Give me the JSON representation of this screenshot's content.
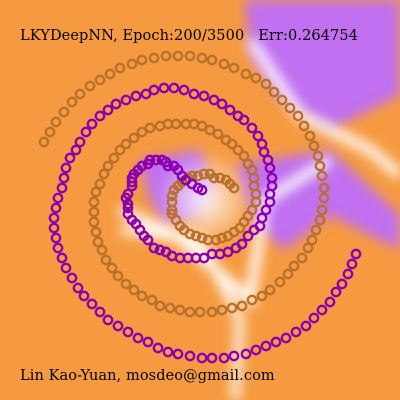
{
  "header": {
    "network": "LKYDeepNN",
    "epoch_text": "Epoch:200/3500",
    "error_text": "Err:0.264754"
  },
  "footer": {
    "credit": "Lin Kao-Yuan, mosdeo@gmail.com"
  },
  "colors": {
    "class_a": "#8a00b0",
    "class_b": "#b8702a",
    "region_a": "#c070f0",
    "region_b": "#f59a40",
    "boundary": "#ffffff"
  },
  "chart_data": {
    "type": "scatter",
    "title": "LKYDeepNN, Epoch:200/3500  Err:0.264754",
    "xlim": [
      -1,
      1
    ],
    "ylim": [
      -1,
      1
    ],
    "grid": false,
    "legend": "none",
    "series": [
      {
        "class": "a",
        "points": [
          [
            0.01,
            0.05
          ],
          [
            -0.01,
            0.06
          ],
          [
            -0.04,
            0.08
          ],
          [
            -0.07,
            0.1
          ],
          [
            -0.09,
            0.12
          ],
          [
            -0.11,
            0.15
          ],
          [
            -0.13,
            0.17
          ],
          [
            -0.16,
            0.17
          ],
          [
            -0.17,
            0.19
          ],
          [
            -0.19,
            0.2
          ],
          [
            -0.22,
            0.2
          ],
          [
            -0.25,
            0.2
          ],
          [
            -0.26,
            0.18
          ],
          [
            -0.29,
            0.17
          ],
          [
            -0.31,
            0.15
          ],
          [
            -0.33,
            0.13
          ],
          [
            -0.34,
            0.11
          ],
          [
            -0.34,
            0.09
          ],
          [
            -0.34,
            0.07
          ],
          [
            -0.36,
            0.03
          ],
          [
            -0.37,
            0.01
          ],
          [
            -0.36,
            -0.02
          ],
          [
            -0.36,
            -0.04
          ],
          [
            -0.36,
            -0.07
          ],
          [
            -0.34,
            -0.1
          ],
          [
            -0.32,
            -0.12
          ],
          [
            -0.3,
            -0.15
          ],
          [
            -0.28,
            -0.18
          ],
          [
            -0.26,
            -0.2
          ],
          [
            -0.23,
            -0.24
          ],
          [
            -0.2,
            -0.25
          ],
          [
            -0.17,
            -0.26
          ],
          [
            -0.14,
            -0.28
          ],
          [
            -0.1,
            -0.29
          ],
          [
            -0.06,
            -0.29
          ],
          [
            -0.02,
            -0.29
          ],
          [
            0.02,
            -0.29
          ],
          [
            0.06,
            -0.27
          ],
          [
            0.1,
            -0.27
          ],
          [
            0.14,
            -0.26
          ],
          [
            0.18,
            -0.24
          ],
          [
            0.21,
            -0.22
          ],
          [
            0.24,
            -0.18
          ],
          [
            0.27,
            -0.15
          ],
          [
            0.3,
            -0.13
          ],
          [
            0.31,
            -0.09
          ],
          [
            0.33,
            -0.05
          ],
          [
            0.35,
            -0.01
          ],
          [
            0.35,
            0.03
          ],
          [
            0.36,
            0.07
          ],
          [
            0.36,
            0.11
          ],
          [
            0.35,
            0.16
          ],
          [
            0.34,
            0.2
          ],
          [
            0.32,
            0.24
          ],
          [
            0.31,
            0.28
          ],
          [
            0.29,
            0.32
          ],
          [
            0.26,
            0.36
          ],
          [
            0.22,
            0.4
          ],
          [
            0.19,
            0.42
          ],
          [
            0.15,
            0.45
          ],
          [
            0.11,
            0.48
          ],
          [
            0.07,
            0.5
          ],
          [
            0.02,
            0.52
          ],
          [
            -0.03,
            0.53
          ],
          [
            -0.08,
            0.55
          ],
          [
            -0.13,
            0.56
          ],
          [
            -0.18,
            0.56
          ],
          [
            -0.23,
            0.55
          ],
          [
            -0.27,
            0.53
          ],
          [
            -0.32,
            0.52
          ],
          [
            -0.37,
            0.5
          ],
          [
            -0.42,
            0.48
          ],
          [
            -0.46,
            0.45
          ],
          [
            -0.5,
            0.42
          ],
          [
            -0.54,
            0.38
          ],
          [
            -0.57,
            0.34
          ],
          [
            -0.6,
            0.29
          ],
          [
            -0.62,
            0.25
          ],
          [
            -0.65,
            0.21
          ],
          [
            -0.67,
            0.16
          ],
          [
            -0.68,
            0.11
          ],
          [
            -0.69,
            0.06
          ],
          [
            -0.71,
            0.01
          ],
          [
            -0.72,
            -0.04
          ],
          [
            -0.73,
            -0.09
          ],
          [
            -0.73,
            -0.14
          ],
          [
            -0.72,
            -0.19
          ],
          [
            -0.71,
            -0.24
          ],
          [
            -0.69,
            -0.29
          ],
          [
            -0.67,
            -0.34
          ],
          [
            -0.64,
            -0.39
          ],
          [
            -0.61,
            -0.44
          ],
          [
            -0.58,
            -0.48
          ],
          [
            -0.54,
            -0.52
          ],
          [
            -0.5,
            -0.56
          ],
          [
            -0.46,
            -0.6
          ],
          [
            -0.41,
            -0.63
          ],
          [
            -0.36,
            -0.66
          ],
          [
            -0.31,
            -0.69
          ],
          [
            -0.26,
            -0.71
          ],
          [
            -0.21,
            -0.74
          ],
          [
            -0.16,
            -0.76
          ],
          [
            -0.11,
            -0.77
          ],
          [
            -0.05,
            -0.78
          ],
          [
            0.01,
            -0.79
          ],
          [
            0.06,
            -0.79
          ],
          [
            0.12,
            -0.79
          ],
          [
            0.17,
            -0.78
          ],
          [
            0.23,
            -0.77
          ],
          [
            0.28,
            -0.75
          ],
          [
            0.33,
            -0.73
          ],
          [
            0.38,
            -0.71
          ],
          [
            0.43,
            -0.69
          ],
          [
            0.48,
            -0.66
          ],
          [
            0.53,
            -0.63
          ],
          [
            0.57,
            -0.59
          ],
          [
            0.61,
            -0.55
          ],
          [
            0.65,
            -0.51
          ],
          [
            0.68,
            -0.46
          ],
          [
            0.71,
            -0.42
          ],
          [
            0.74,
            -0.37
          ],
          [
            0.76,
            -0.32
          ],
          [
            0.78,
            -0.27
          ]
        ]
      },
      {
        "class": "b",
        "points": [
          [
            0.17,
            0.06
          ],
          [
            0.15,
            0.08
          ],
          [
            0.13,
            0.1
          ],
          [
            0.1,
            0.11
          ],
          [
            0.07,
            0.11
          ],
          [
            0.05,
            0.13
          ],
          [
            0.02,
            0.13
          ],
          [
            -0.01,
            0.12
          ],
          [
            -0.04,
            0.12
          ],
          [
            -0.06,
            0.11
          ],
          [
            -0.09,
            0.09
          ],
          [
            -0.11,
            0.07
          ],
          [
            -0.13,
            0.05
          ],
          [
            -0.14,
            0.02
          ],
          [
            -0.14,
            -0.01
          ],
          [
            -0.14,
            -0.05
          ],
          [
            -0.14,
            -0.07
          ],
          [
            -0.12,
            -0.1
          ],
          [
            -0.1,
            -0.13
          ],
          [
            -0.08,
            -0.15
          ],
          [
            -0.05,
            -0.17
          ],
          [
            -0.02,
            -0.18
          ],
          [
            0.01,
            -0.19
          ],
          [
            0.04,
            -0.2
          ],
          [
            0.08,
            -0.2
          ],
          [
            0.11,
            -0.19
          ],
          [
            0.14,
            -0.18
          ],
          [
            0.17,
            -0.16
          ],
          [
            0.2,
            -0.14
          ],
          [
            0.22,
            -0.11
          ],
          [
            0.24,
            -0.08
          ],
          [
            0.26,
            -0.05
          ],
          [
            0.28,
            -0.01
          ],
          [
            0.28,
            0.03
          ],
          [
            0.27,
            0.07
          ],
          [
            0.27,
            0.11
          ],
          [
            0.26,
            0.15
          ],
          [
            0.24,
            0.18
          ],
          [
            0.22,
            0.22
          ],
          [
            0.19,
            0.25
          ],
          [
            0.16,
            0.28
          ],
          [
            0.13,
            0.3
          ],
          [
            0.09,
            0.33
          ],
          [
            0.05,
            0.35
          ],
          [
            0.01,
            0.37
          ],
          [
            -0.03,
            0.38
          ],
          [
            -0.07,
            0.38
          ],
          [
            -0.12,
            0.38
          ],
          [
            -0.16,
            0.38
          ],
          [
            -0.2,
            0.37
          ],
          [
            -0.25,
            0.36
          ],
          [
            -0.29,
            0.34
          ],
          [
            -0.33,
            0.31
          ],
          [
            -0.37,
            0.28
          ],
          [
            -0.4,
            0.25
          ],
          [
            -0.43,
            0.21
          ],
          [
            -0.46,
            0.17
          ],
          [
            -0.48,
            0.13
          ],
          [
            -0.5,
            0.08
          ],
          [
            -0.52,
            0.04
          ],
          [
            -0.53,
            -0.01
          ],
          [
            -0.53,
            -0.06
          ],
          [
            -0.53,
            -0.11
          ],
          [
            -0.52,
            -0.16
          ],
          [
            -0.51,
            -0.21
          ],
          [
            -0.49,
            -0.25
          ],
          [
            -0.47,
            -0.3
          ],
          [
            -0.44,
            -0.34
          ],
          [
            -0.41,
            -0.38
          ],
          [
            -0.37,
            -0.42
          ],
          [
            -0.33,
            -0.45
          ],
          [
            -0.29,
            -0.48
          ],
          [
            -0.24,
            -0.5
          ],
          [
            -0.2,
            -0.53
          ],
          [
            -0.15,
            -0.54
          ],
          [
            -0.1,
            -0.55
          ],
          [
            -0.05,
            -0.56
          ],
          [
            0,
            -0.56
          ],
          [
            0.06,
            -0.56
          ],
          [
            0.11,
            -0.55
          ],
          [
            0.16,
            -0.54
          ],
          [
            0.21,
            -0.53
          ],
          [
            0.26,
            -0.5
          ],
          [
            0.31,
            -0.48
          ],
          [
            0.35,
            -0.45
          ],
          [
            0.4,
            -0.41
          ],
          [
            0.44,
            -0.37
          ],
          [
            0.47,
            -0.33
          ],
          [
            0.51,
            -0.29
          ],
          [
            0.54,
            -0.24
          ],
          [
            0.56,
            -0.2
          ],
          [
            0.58,
            -0.15
          ],
          [
            0.6,
            -0.1
          ],
          [
            0.61,
            -0.05
          ],
          [
            0.62,
            0.01
          ],
          [
            0.62,
            0.06
          ],
          [
            0.61,
            0.12
          ],
          [
            0.6,
            0.17
          ],
          [
            0.59,
            0.22
          ],
          [
            0.57,
            0.27
          ],
          [
            0.55,
            0.32
          ],
          [
            0.52,
            0.37
          ],
          [
            0.49,
            0.42
          ],
          [
            0.45,
            0.46
          ],
          [
            0.41,
            0.5
          ],
          [
            0.37,
            0.54
          ],
          [
            0.33,
            0.58
          ],
          [
            0.28,
            0.61
          ],
          [
            0.23,
            0.63
          ],
          [
            0.17,
            0.66
          ],
          [
            0.12,
            0.68
          ],
          [
            0.06,
            0.7
          ],
          [
            0.01,
            0.71
          ],
          [
            -0.05,
            0.72
          ],
          [
            -0.11,
            0.72
          ],
          [
            -0.17,
            0.72
          ],
          [
            -0.23,
            0.71
          ],
          [
            -0.29,
            0.7
          ],
          [
            -0.34,
            0.68
          ],
          [
            -0.4,
            0.66
          ],
          [
            -0.45,
            0.63
          ],
          [
            -0.5,
            0.6
          ],
          [
            -0.55,
            0.57
          ],
          [
            -0.6,
            0.53
          ],
          [
            -0.64,
            0.49
          ],
          [
            -0.68,
            0.44
          ],
          [
            -0.72,
            0.39
          ],
          [
            -0.75,
            0.34
          ],
          [
            -0.78,
            0.29
          ]
        ]
      }
    ]
  }
}
